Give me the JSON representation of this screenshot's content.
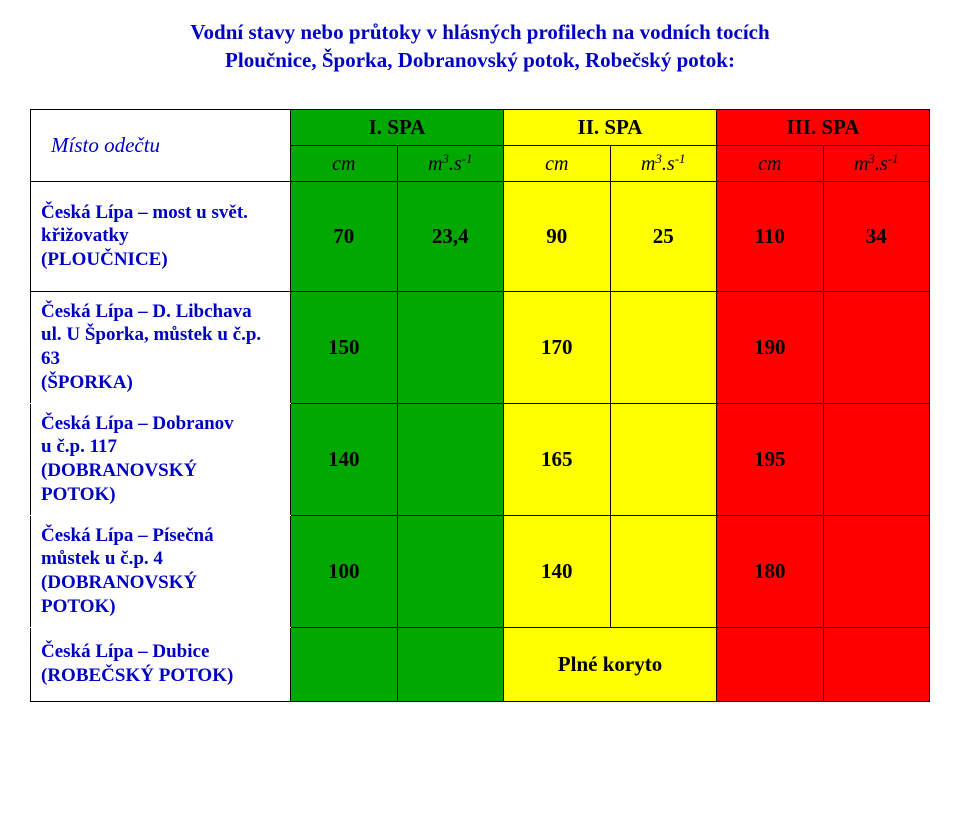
{
  "title": {
    "line1": "Vodní stavy nebo průtoky v hlásných profilech na vodních tocích",
    "line2": "Ploučnice, Šporka, Dobranovský potok, Robečský potok:",
    "color": "#0000c0"
  },
  "colors": {
    "spa1_bg": "#00a800",
    "spa2_bg": "#ffff00",
    "spa3_bg": "#ff0000",
    "header_text": "#0000c0",
    "label_text": "#0000c0",
    "border": "#000000"
  },
  "header": {
    "place": "Místo odečtu",
    "spa1": "I. SPA",
    "spa2": "II. SPA",
    "spa3": "III. SPA",
    "cm": "cm",
    "unit_html": "m³.s⁻¹"
  },
  "rows": [
    {
      "label_lines": [
        "Česká Lípa – most u svět.",
        "křižovatky",
        "(PLOUČNICE)"
      ],
      "spa1": {
        "cm": "70",
        "q": "23,4"
      },
      "spa2": {
        "cm": "90",
        "q": "25"
      },
      "spa3": {
        "cm": "110",
        "q": "34"
      },
      "type": "main"
    },
    {
      "label_lines": [
        "Česká Lípa – D. Libchava",
        "ul. U Šporka, můstek u č.p.",
        "63",
        "(ŠPORKA)"
      ],
      "spa1": {
        "cm": "150",
        "q": ""
      },
      "spa2": {
        "cm": "170",
        "q": ""
      },
      "spa3": {
        "cm": "190",
        "q": ""
      },
      "type": "main"
    },
    {
      "label_lines": [
        "Česká Lípa – Dobranov",
        "u č.p. 117",
        "(DOBRANOVSKÝ",
        "POTOK)"
      ],
      "spa1": {
        "cm": "140",
        "q": ""
      },
      "spa2": {
        "cm": "165",
        "q": ""
      },
      "spa3": {
        "cm": "195",
        "q": ""
      },
      "type": "sub"
    },
    {
      "label_lines": [
        "Česká Lípa – Písečná",
        "můstek u č.p. 4",
        "(DOBRANOVSKÝ",
        "POTOK)"
      ],
      "spa1": {
        "cm": "100",
        "q": ""
      },
      "spa2": {
        "cm": "140",
        "q": ""
      },
      "spa3": {
        "cm": "180",
        "q": ""
      },
      "type": "sub"
    },
    {
      "label_lines": [
        "Česká Lípa – Dubice",
        "(ROBEČSKÝ POTOK)"
      ],
      "merged": "Plné koryto",
      "type": "sub"
    }
  ]
}
